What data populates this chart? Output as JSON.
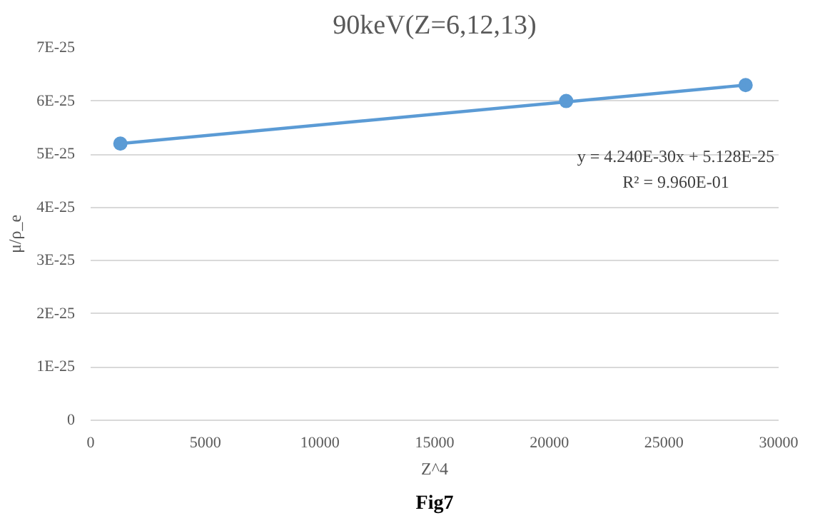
{
  "chart_data": {
    "type": "scatter",
    "title": "90keV(Z=6,12,13)",
    "xlabel": "Z^4",
    "ylabel": "μ/ρ_e",
    "x": [
      1296,
      20736,
      28561
    ],
    "series": [
      {
        "color": "#5b9bd5",
        "marker": "circle",
        "values": [
          5.2e-25,
          6e-25,
          6.3e-25
        ]
      },
      {
        "type": "line",
        "color": "#5b9bd5",
        "marker": "none",
        "line_style": "solid",
        "x": [
          1296,
          28561
        ],
        "values": [
          5.2e-25,
          6.3e-25
        ]
      }
    ],
    "xlim": [
      0,
      30000
    ],
    "xticks": [
      0,
      5000,
      10000,
      15000,
      20000,
      25000,
      30000
    ],
    "ylim": [
      0,
      7e-25
    ],
    "yticks": [
      0,
      {
        "value": 1e-25,
        "label": "1E-25"
      },
      {
        "value": 2e-25,
        "label": "2E-25"
      },
      {
        "value": 3e-25,
        "label": "3E-25"
      },
      {
        "value": 4e-25,
        "label": "4E-25"
      },
      {
        "value": 5e-25,
        "label": "5E-25"
      },
      {
        "value": 6e-25,
        "label": "6E-25"
      },
      {
        "value": 7e-25,
        "label": "7E-25"
      }
    ],
    "grid": "y",
    "annotations": [
      "y = 4.240E-30x + 5.128E-25",
      "R² = 9.960E-01",
      "Fig7"
    ]
  }
}
